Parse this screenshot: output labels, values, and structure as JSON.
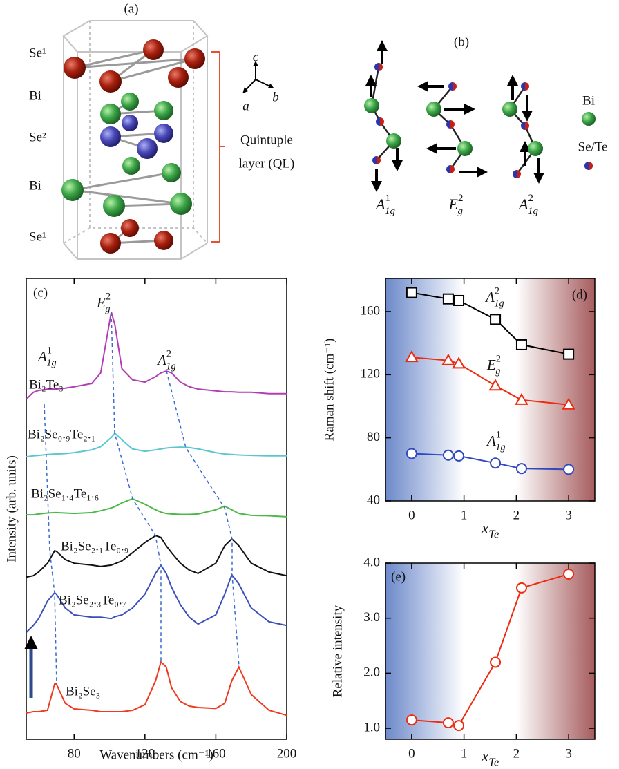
{
  "diagram_a": {
    "label": "(a)",
    "layers": [
      "Se¹",
      "Bi",
      "Se²",
      "Bi",
      "Se¹"
    ],
    "bracket_label": [
      "Quintuple",
      "layer (QL)"
    ],
    "axes": [
      "c",
      "a",
      "b"
    ]
  },
  "diagram_b": {
    "label": "(b)",
    "modes": [
      {
        "base": "A",
        "sup": "1",
        "sub": "1g"
      },
      {
        "base": "E",
        "sup": "2",
        "sub": "g"
      },
      {
        "base": "A",
        "sup": "2",
        "sub": "1g"
      }
    ],
    "legend": [
      "Bi",
      "Se/Te"
    ]
  },
  "chart_data": [
    {
      "type": "line",
      "panel_label": "(c)",
      "x_label": "Wavenumbers (cm⁻¹)",
      "y_label": "Intensity (arb. units)",
      "x": [
        53,
        57,
        60,
        65,
        69,
        70,
        75,
        80,
        90,
        95,
        101,
        103,
        107,
        113,
        120,
        126,
        129,
        132,
        135,
        140,
        145,
        150,
        160,
        165,
        169,
        173,
        180,
        190,
        200
      ],
      "xlim": [
        53,
        200
      ],
      "xticks": [
        80,
        120,
        160,
        200
      ],
      "ylim": [
        0,
        100
      ],
      "peak_labels": [
        {
          "base": "A",
          "sup": "1",
          "sub": "1g"
        },
        {
          "base": "E",
          "sup": "2",
          "sub": "g"
        },
        {
          "base": "A",
          "sup": "2",
          "sub": "1g"
        }
      ],
      "series": [
        {
          "name": "Bi₂Te₃",
          "color": "#b23cb4",
          "values": [
            73.8,
            75.3,
            75.7,
            76.0,
            76.0,
            76.0,
            76.2,
            76.5,
            77.2,
            79.5,
            92.7,
            90.0,
            80.4,
            78.0,
            77.5,
            78.7,
            79.5,
            79.9,
            79.5,
            77.5,
            76.5,
            76.0,
            75.6,
            75.4,
            75.4,
            75.3,
            75.3,
            75.0,
            75.0
          ]
        },
        {
          "name": "Bi₂Se₀.₉Te₂.₁",
          "color": "#5cc6d0",
          "values": [
            61.3,
            61.5,
            61.6,
            61.8,
            61.9,
            61.9,
            62.0,
            62.2,
            62.8,
            63.5,
            65.5,
            66.4,
            65.0,
            63.0,
            62.5,
            62.8,
            63.0,
            63.2,
            63.3,
            63.4,
            63.3,
            63.0,
            62.2,
            61.9,
            61.8,
            61.7,
            61.6,
            61.5,
            61.5
          ]
        },
        {
          "name": "Bi₂Se₁.₄Te₁.₆",
          "color": "#4cb848",
          "values": [
            48.7,
            48.7,
            48.9,
            49.1,
            49.2,
            49.2,
            49.1,
            49.0,
            49.2,
            49.6,
            50.2,
            50.5,
            51.3,
            52.2,
            51.0,
            49.8,
            49.3,
            49.0,
            48.9,
            48.8,
            48.8,
            48.9,
            49.8,
            50.6,
            49.8,
            49.0,
            48.6,
            48.5,
            48.3
          ]
        },
        {
          "name": "Bi₂Se₂.₁Te₀.₉",
          "color": "#111111",
          "values": [
            35.2,
            35.5,
            36.3,
            38.2,
            40.9,
            40.8,
            39.0,
            38.2,
            37.8,
            37.5,
            37.8,
            38.1,
            38.7,
            40.5,
            42.7,
            44.2,
            43.8,
            42.0,
            40.5,
            38.2,
            36.7,
            36.0,
            38.2,
            42.0,
            43.5,
            42.0,
            38.2,
            36.3,
            35.5
          ]
        },
        {
          "name": "Bi₂Se₂.₃Te₀.₇",
          "color": "#3a4fb8",
          "values": [
            23.2,
            24.7,
            26.2,
            30.0,
            31.8,
            31.5,
            28.5,
            27.0,
            26.5,
            26.5,
            26.2,
            26.6,
            27.0,
            28.5,
            31.5,
            36.0,
            37.8,
            36.0,
            33.0,
            29.2,
            26.5,
            25.0,
            27.0,
            31.5,
            35.7,
            33.7,
            28.5,
            25.5,
            24.7
          ]
        },
        {
          "name": "Bi₂Se₃",
          "color": "#ee3a1f",
          "values": [
            5.7,
            6.0,
            6.0,
            6.3,
            12.0,
            12.0,
            7.8,
            6.6,
            6.3,
            6.0,
            6.0,
            6.0,
            6.0,
            6.3,
            7.5,
            12.7,
            16.8,
            15.7,
            11.2,
            8.2,
            7.2,
            6.9,
            6.7,
            7.8,
            12.7,
            15.7,
            9.7,
            6.3,
            5.2
          ]
        }
      ]
    },
    {
      "type": "line",
      "panel_label": "(d)",
      "x_label": {
        "base": "x",
        "sub": "Te"
      },
      "y_label": "Raman shift (cm⁻¹)",
      "x": [
        0,
        0.7,
        0.9,
        1.6,
        2.1,
        3
      ],
      "xlim": [
        -0.5,
        3.5
      ],
      "xticks": [
        0,
        1,
        2,
        3
      ],
      "ylim": [
        40,
        181
      ],
      "yticks": [
        40,
        80,
        120,
        160
      ],
      "shading": [
        {
          "xrange": [
            -0.5,
            1
          ],
          "color": "#6d89ca"
        },
        {
          "xrange": [
            2,
            3.5
          ],
          "color": "#a65c5e"
        }
      ],
      "series": [
        {
          "name": {
            "base": "A",
            "sup": "2",
            "sub": "1g"
          },
          "color": "#000000",
          "marker": "square",
          "values": [
            172,
            168,
            167,
            155,
            139,
            133
          ]
        },
        {
          "name": {
            "base": "E",
            "sup": "2",
            "sub": "g"
          },
          "color": "#ee2a10",
          "marker": "triangle",
          "values": [
            131,
            129,
            127,
            113,
            104,
            101
          ]
        },
        {
          "name": {
            "base": "A",
            "sup": "1",
            "sub": "1g"
          },
          "color": "#3048c0",
          "marker": "circle",
          "values": [
            70,
            69,
            68.5,
            64,
            60.5,
            60
          ]
        }
      ]
    },
    {
      "type": "line",
      "panel_label": "(e)",
      "x_label": {
        "base": "x",
        "sub": "Te"
      },
      "y_label": "Relative intensity",
      "x": [
        0,
        0.7,
        0.9,
        1.6,
        2.1,
        3
      ],
      "xlim": [
        -0.5,
        3.5
      ],
      "xticks": [
        0,
        1,
        2,
        3
      ],
      "ylim": [
        0.8,
        4.0
      ],
      "yticks": [
        {
          "value": 1,
          "label": "1.0"
        },
        {
          "value": 2,
          "label": "2.0"
        },
        {
          "value": 3,
          "label": "3.0"
        },
        {
          "value": 4,
          "label": "4.0"
        }
      ],
      "shading": [
        {
          "xrange": [
            -0.5,
            1
          ],
          "color": "#6d89ca"
        },
        {
          "xrange": [
            2,
            3.5
          ],
          "color": "#a65c5e"
        }
      ],
      "series": [
        {
          "color": "#ee2a10",
          "marker": "circle",
          "values": [
            1.15,
            1.1,
            1.05,
            2.2,
            3.55,
            3.8
          ]
        }
      ]
    }
  ]
}
